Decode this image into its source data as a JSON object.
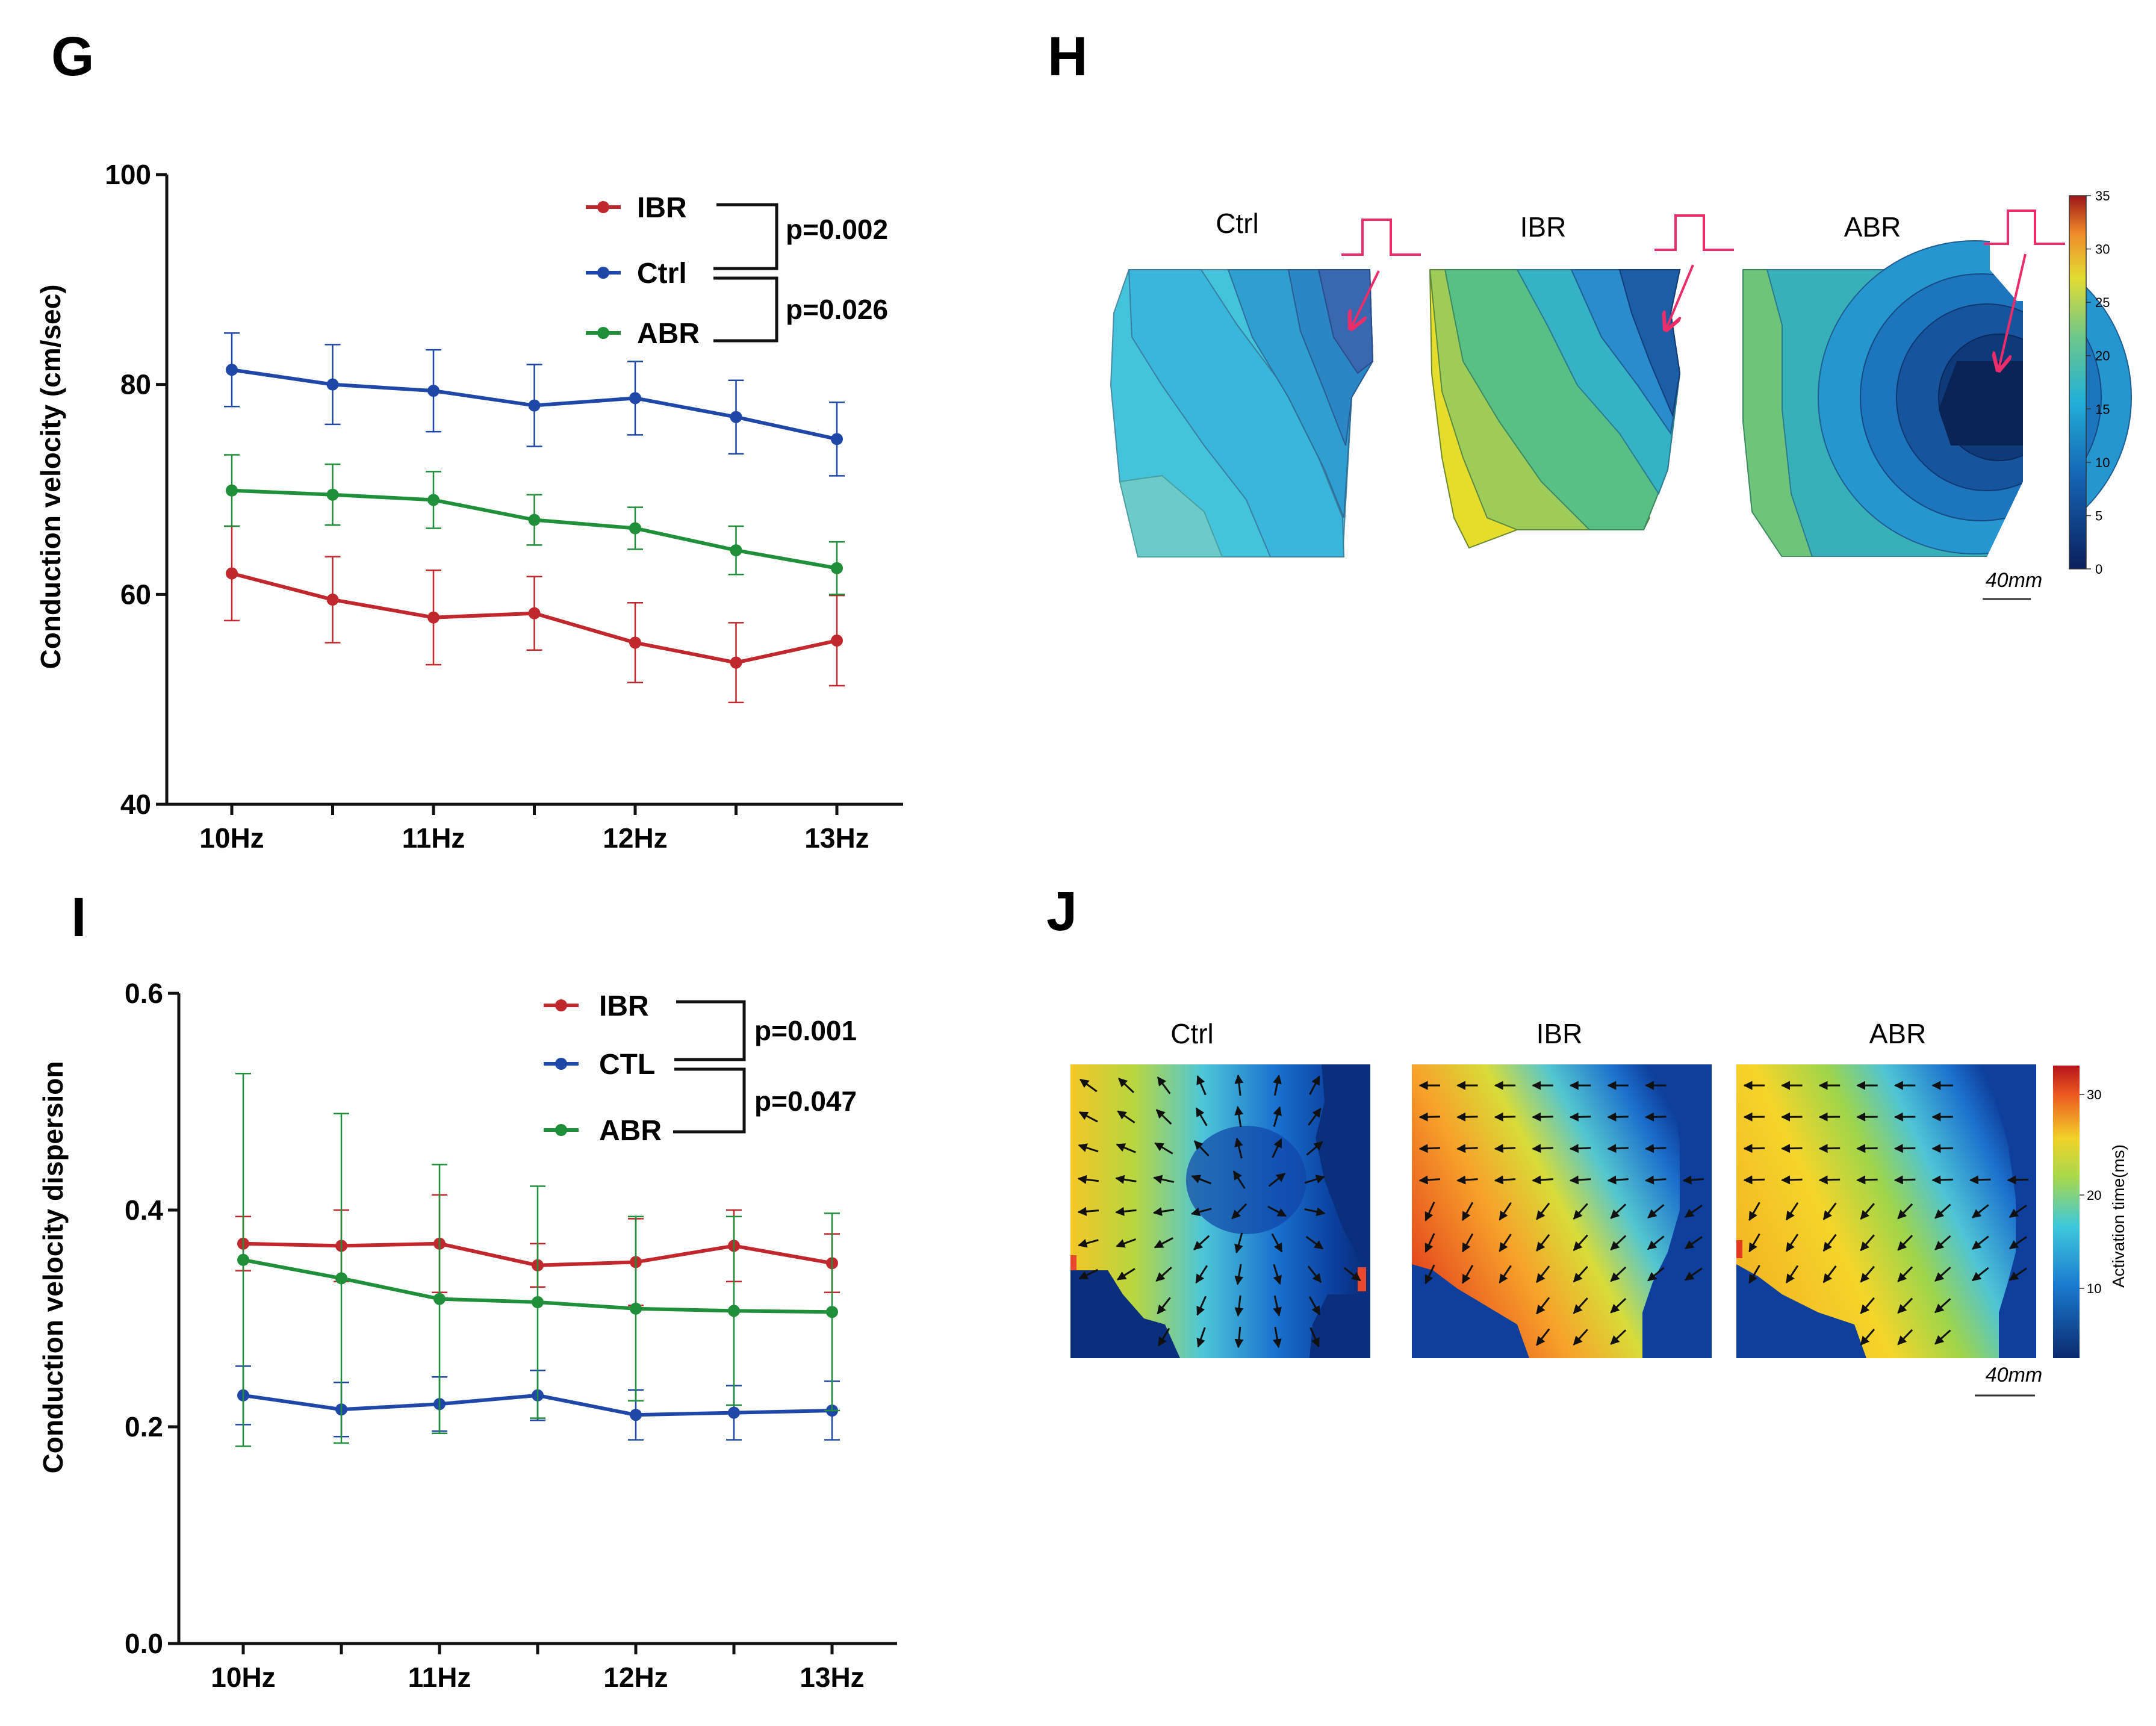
{
  "panels": {
    "G": "G",
    "H": "H",
    "I": "I",
    "J": "J"
  },
  "colors": {
    "IBR": "#c0282d",
    "Ctrl": "#1f47a8",
    "ABR": "#1f8f3a"
  },
  "chart_data": [
    {
      "id": "G",
      "type": "line",
      "title": "",
      "xlabel": "",
      "ylabel": "Conduction velocity (cm/sec)",
      "x_ticks": [
        "10Hz",
        "11Hz",
        "12Hz",
        "13Hz"
      ],
      "x": [
        10,
        10.5,
        11,
        11.5,
        12,
        12.5,
        13
      ],
      "ylim": [
        40,
        100
      ],
      "y_ticks": [
        "40",
        "60",
        "80",
        "100"
      ],
      "series": [
        {
          "name": "IBR",
          "key": "IBR",
          "values": [
            62.0,
            59.5,
            57.8,
            58.2,
            55.4,
            53.5,
            55.6
          ],
          "err": [
            4.5,
            4.1,
            4.5,
            3.5,
            3.8,
            3.8,
            4.3
          ]
        },
        {
          "name": "Ctrl",
          "key": "Ctrl",
          "values": [
            81.4,
            80.0,
            79.4,
            78.0,
            78.7,
            76.9,
            74.8
          ],
          "err": [
            3.5,
            3.8,
            3.9,
            3.9,
            3.5,
            3.5,
            3.5
          ]
        },
        {
          "name": "ABR",
          "key": "ABR",
          "values": [
            69.9,
            69.5,
            69.0,
            67.1,
            66.3,
            64.2,
            62.5
          ],
          "err": [
            3.4,
            2.9,
            2.7,
            2.4,
            2.0,
            2.3,
            2.5
          ]
        }
      ],
      "legend": "top-right",
      "pvalues": [
        "p=0.002",
        "p=0.026"
      ]
    },
    {
      "id": "I",
      "type": "line",
      "title": "",
      "xlabel": "",
      "ylabel": "Conduction velocity dispersion",
      "x_ticks": [
        "10Hz",
        "11Hz",
        "12Hz",
        "13Hz"
      ],
      "x": [
        10,
        10.5,
        11,
        11.5,
        12,
        12.5,
        13
      ],
      "ylim": [
        0,
        0.6
      ],
      "y_ticks": [
        "0.0",
        "0.2",
        "0.4",
        "0.6"
      ],
      "series": [
        {
          "name": "IBR",
          "key": "IBR",
          "values": [
            0.369,
            0.367,
            0.369,
            0.349,
            0.352,
            0.367,
            0.351
          ],
          "err": [
            0.025,
            0.033,
            0.045,
            0.02,
            0.04,
            0.033,
            0.027
          ]
        },
        {
          "name": "CTL",
          "key": "Ctrl",
          "values": [
            0.229,
            0.216,
            0.221,
            0.229,
            0.211,
            0.213,
            0.215
          ],
          "err": [
            0.027,
            0.025,
            0.025,
            0.023,
            0.023,
            0.025,
            0.027
          ]
        },
        {
          "name": "ABR",
          "key": "ABR",
          "values": [
            0.354,
            0.337,
            0.318,
            0.315,
            0.309,
            0.307,
            0.306
          ],
          "err": [
            0.172,
            0.152,
            0.124,
            0.107,
            0.085,
            0.087,
            0.091
          ]
        }
      ],
      "legend": "top-right",
      "pvalues": [
        "p=0.001",
        "p=0.047"
      ]
    }
  ],
  "panelH": {
    "maps": [
      {
        "title": "Ctrl",
        "palette": [
          "#44c3dd",
          "#3ab6dd",
          "#2f9fd2",
          "#2b86c5",
          "#3a68b0"
        ]
      },
      {
        "title": "IBR",
        "palette": [
          "#e6dc2b",
          "#9fcc58",
          "#58c084",
          "#35b2c4",
          "#2a8ccc",
          "#1b5ea6"
        ]
      },
      {
        "title": "ABR",
        "palette": [
          "#6fc47a",
          "#38b0b8",
          "#2596d0",
          "#1c75bd",
          "#16559d",
          "#0f3a7a",
          "#0a2456"
        ]
      }
    ],
    "colorbar_ticks": [
      "35",
      "30",
      "25",
      "20",
      "15",
      "10",
      "5",
      "0"
    ],
    "scale_bar": "40mm"
  },
  "panelJ": {
    "maps": [
      {
        "title": "Ctrl"
      },
      {
        "title": "IBR"
      },
      {
        "title": "ABR"
      }
    ],
    "colorbar_ticks": [
      "30",
      "20",
      "10"
    ],
    "colorbar_label": "Activation time(ms)",
    "scale_bar": "40mm"
  }
}
